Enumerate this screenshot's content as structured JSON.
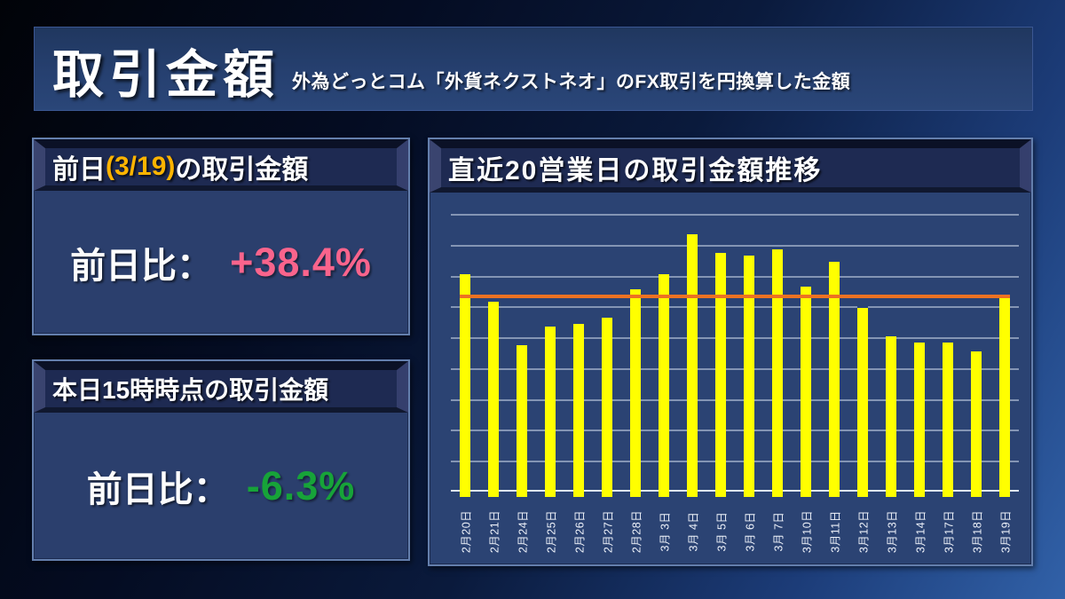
{
  "header": {
    "title": "取引金額",
    "subtitle": "外為どっとコム「外貨ネクストネオ」のFX取引を円換算した金額"
  },
  "panels": {
    "previous_day": {
      "title_prefix": "前日",
      "title_date": "(3/19)",
      "title_suffix": "の取引金額",
      "label": "前日比：",
      "value": "+38.4%",
      "value_color": "#f9648c"
    },
    "today": {
      "title": "本日15時時点の取引金額",
      "label": "前日比：",
      "value": "-6.3%",
      "value_color": "#17a339"
    }
  },
  "chart": {
    "title": "直近20営業日の取引金額推移"
  },
  "chart_data": {
    "type": "bar",
    "title": "直近20営業日の取引金額推移",
    "categories": [
      "2月20日",
      "2月21日",
      "2月24日",
      "2月25日",
      "2月26日",
      "2月27日",
      "2月28日",
      "3月 3日",
      "3月 4日",
      "3月 5日",
      "3月 6日",
      "3月 7日",
      "3月10日",
      "3月11日",
      "3月12日",
      "3月13日",
      "3月14日",
      "3月17日",
      "3月18日",
      "3月19日"
    ],
    "values": [
      71,
      62,
      48,
      54,
      55,
      57,
      66,
      71,
      84,
      78,
      77,
      79,
      67,
      75,
      60,
      51,
      49,
      49,
      46,
      64
    ],
    "average_line": 63.2,
    "xlabel": "",
    "ylabel": "",
    "ylim": [
      0,
      90
    ],
    "gridline_interval": 10,
    "grid": true,
    "y_axis_labels_visible": false,
    "legend": "none",
    "bar_color": "#ffff00",
    "average_line_color": "#ed7222",
    "note": "values are relative units read from unlabeled gridlines (1 gridline = 10); orange line = 20-day average"
  },
  "colors": {
    "background_top": "#010308",
    "background_bottom_right": "#3161a8",
    "banner": "#264070",
    "panel_body": "#2b3f6d",
    "panel_header": "#1e2a52",
    "accent_gold": "#ffb400",
    "positive_pink": "#f9648c",
    "negative_green": "#17a339",
    "bar_yellow": "#ffff00",
    "average_orange": "#ed7222"
  }
}
